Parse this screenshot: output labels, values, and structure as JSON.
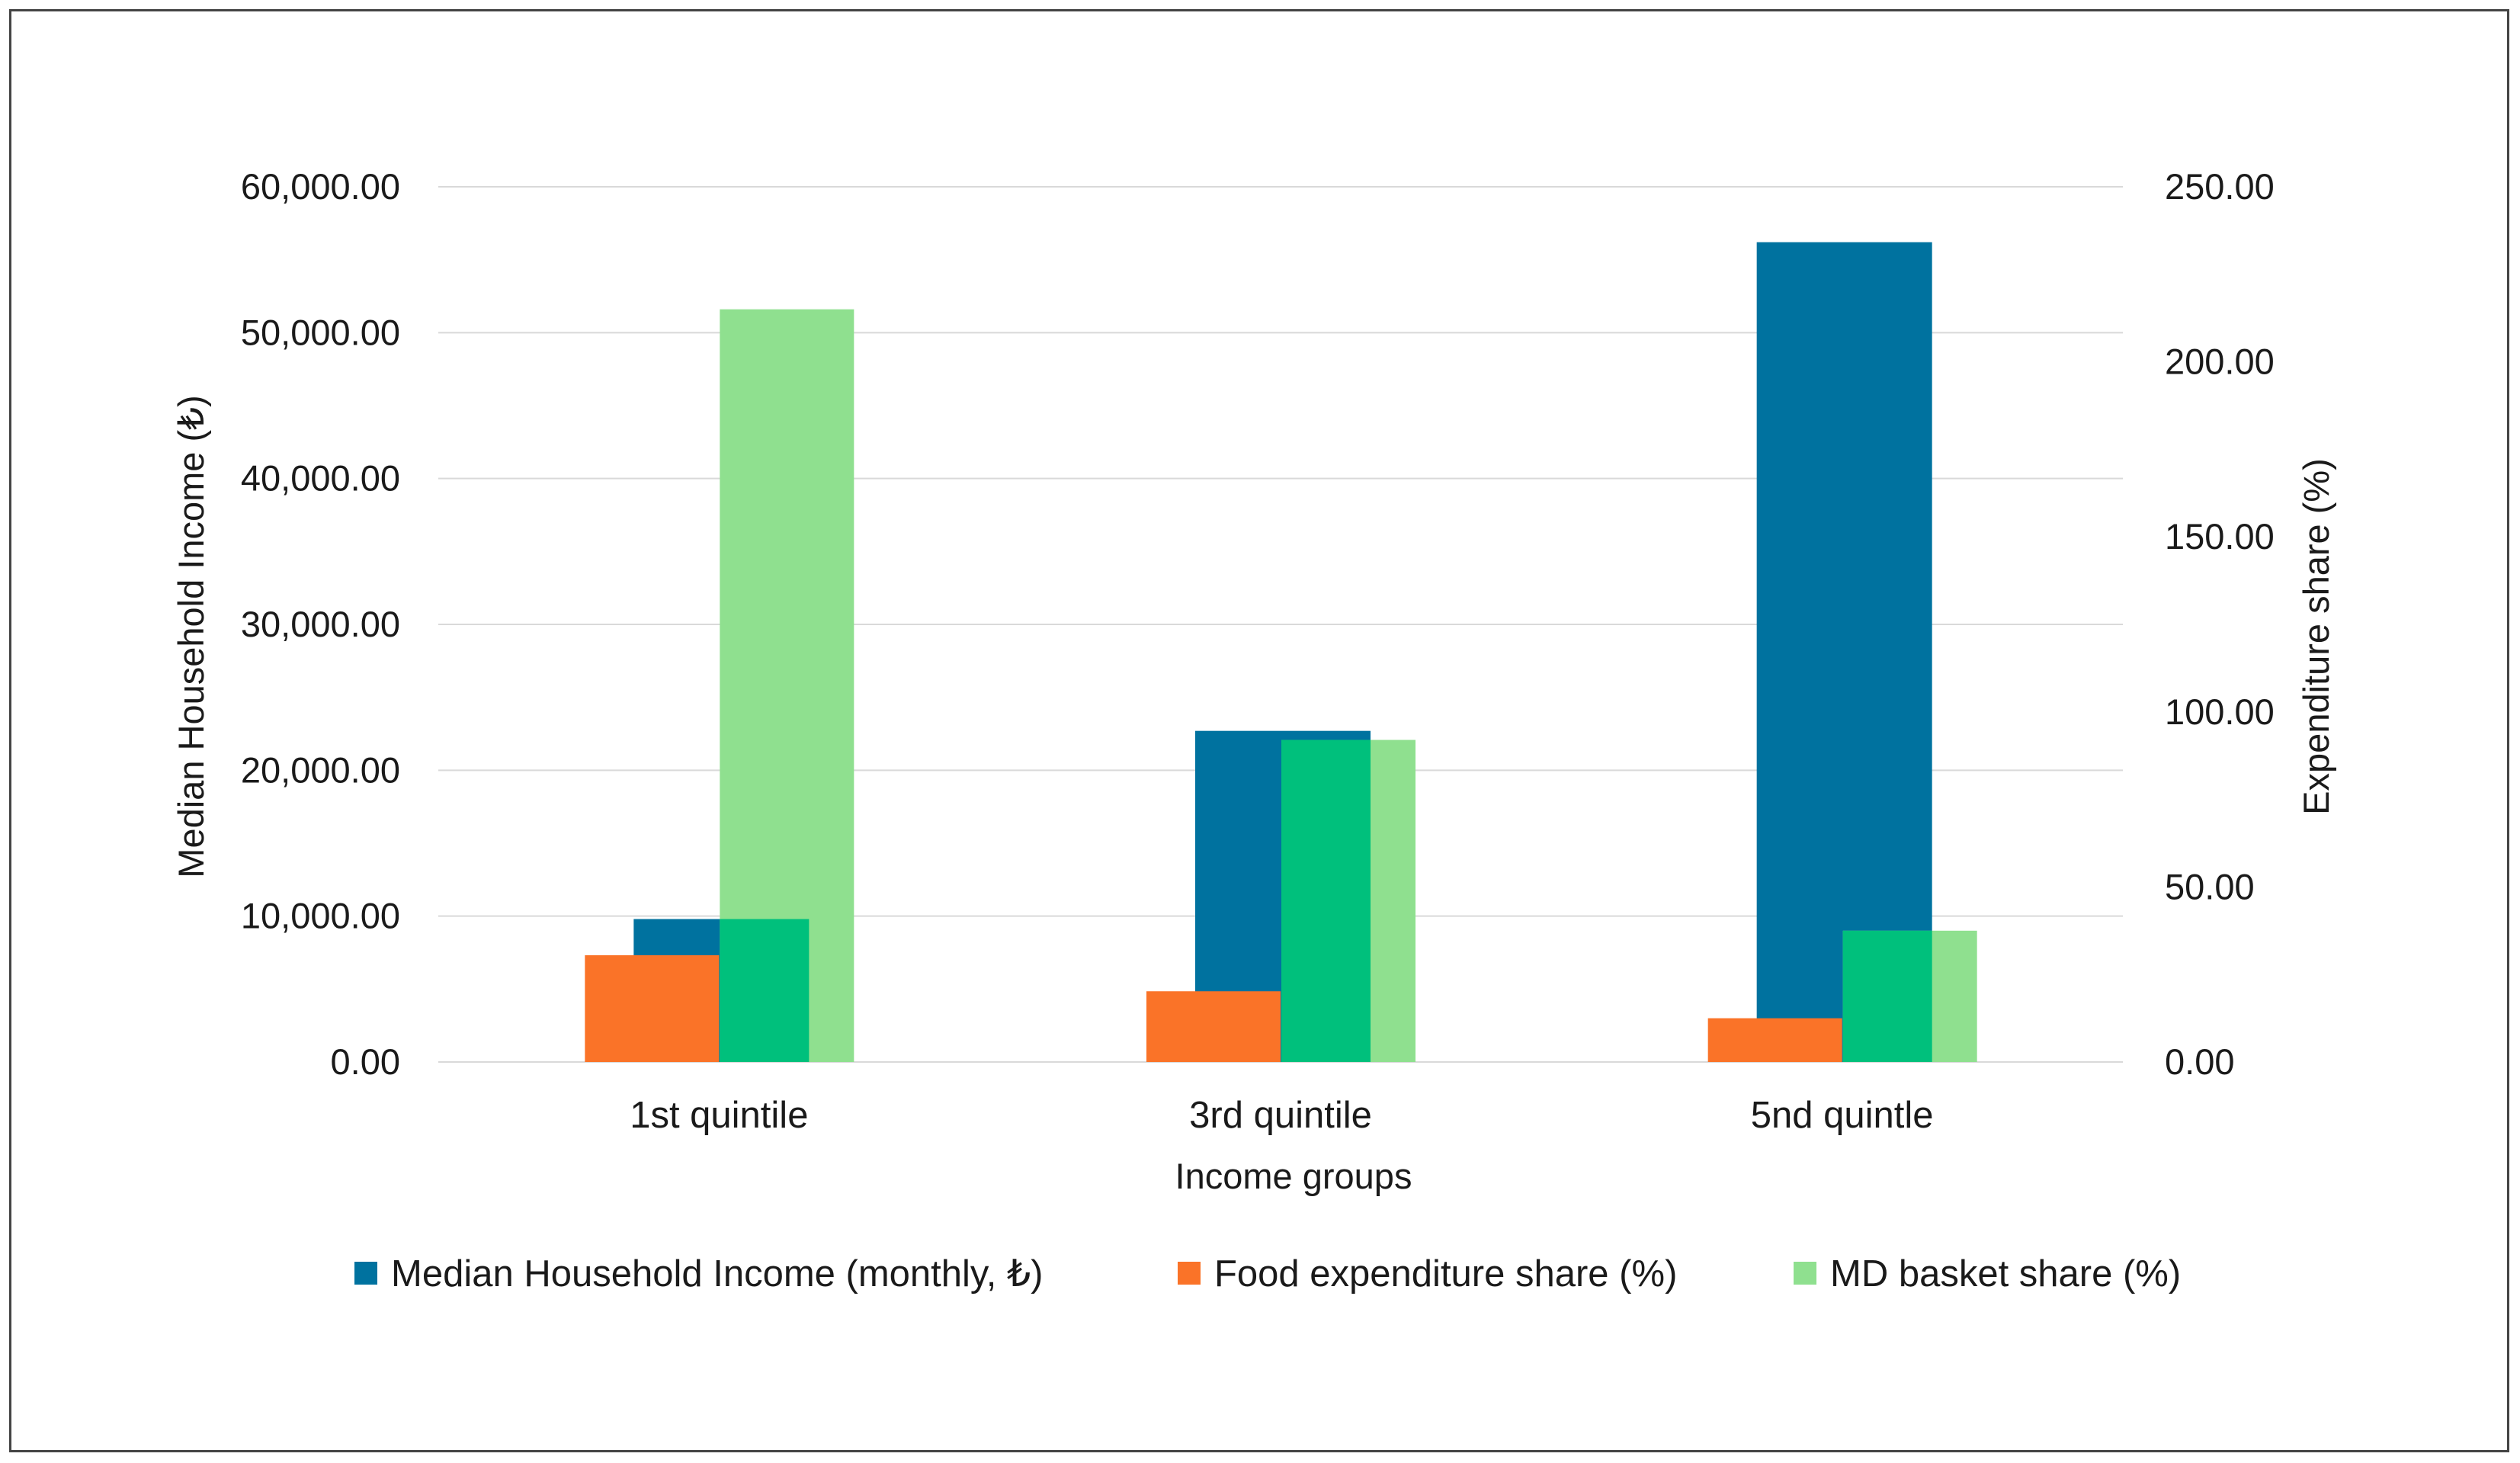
{
  "chart_data": {
    "type": "bar",
    "title": "",
    "xlabel": "Income groups",
    "ylabel": "Median Household Income (₺)",
    "y2label": "Expenditure share (%)",
    "ylim": [
      0,
      60000
    ],
    "y2lim": [
      0,
      250
    ],
    "y_ticks": [
      "0.00",
      "10,000.00",
      "20,000.00",
      "30,000.00",
      "40,000.00",
      "50,000.00",
      "60,000.00"
    ],
    "y2_ticks": [
      "0.00",
      "50.00",
      "100.00",
      "150.00",
      "200.00",
      "250.00"
    ],
    "y_tick_values": [
      0,
      10000,
      20000,
      30000,
      40000,
      50000,
      60000
    ],
    "y2_tick_values": [
      0,
      50,
      100,
      150,
      200,
      250
    ],
    "grid": true,
    "legend_position": "bottom",
    "categories": [
      "1st quintile",
      "3rd quintile",
      "5nd quintle"
    ],
    "series": [
      {
        "name": "Median Household Income (monthly, ₺)",
        "axis": "left",
        "color": "#00729f",
        "values": [
          9800,
          22700,
          56200
        ]
      },
      {
        "name": "Food expenditure share (%)",
        "axis": "right",
        "color": "#fa7328",
        "values": [
          30.5,
          20.2,
          12.5
        ]
      },
      {
        "name": "MD basket share (%)",
        "axis": "right",
        "color": "#8fe08f",
        "overlap_color": "#00c07c",
        "values": [
          215,
          92,
          37.5
        ]
      }
    ]
  }
}
